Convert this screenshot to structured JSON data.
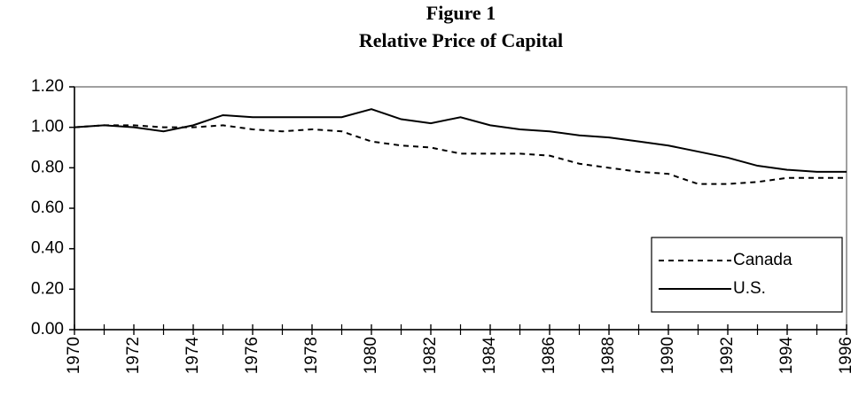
{
  "chart_data": {
    "type": "line",
    "title": "Figure 1",
    "subtitle": "Relative Price of Capital",
    "x": [
      1970,
      1971,
      1972,
      1973,
      1974,
      1975,
      1976,
      1977,
      1978,
      1979,
      1980,
      1981,
      1982,
      1983,
      1984,
      1985,
      1986,
      1987,
      1988,
      1989,
      1990,
      1991,
      1992,
      1993,
      1994,
      1995,
      1996
    ],
    "xlim": [
      1970,
      1996
    ],
    "xticks": [
      1970,
      1972,
      1974,
      1976,
      1978,
      1980,
      1982,
      1984,
      1986,
      1988,
      1990,
      1992,
      1994,
      1996
    ],
    "ylim": [
      0,
      1.2
    ],
    "yticks": [
      {
        "value": 0,
        "label": "0.00"
      },
      {
        "value": 0.2,
        "label": "0.20"
      },
      {
        "value": 0.4,
        "label": "0.40"
      },
      {
        "value": 0.6,
        "label": "0.60"
      },
      {
        "value": 0.8,
        "label": "0.80"
      },
      {
        "value": 1.0,
        "label": "1.00"
      },
      {
        "value": 1.2,
        "label": "1.20"
      }
    ],
    "grid": false,
    "legend": "lower right",
    "series": [
      {
        "name": "Canada",
        "color": "#000000",
        "style": "dashed",
        "values": [
          1.0,
          1.01,
          1.01,
          1.0,
          1.0,
          1.01,
          0.99,
          0.98,
          0.99,
          0.98,
          0.93,
          0.91,
          0.9,
          0.87,
          0.87,
          0.87,
          0.86,
          0.82,
          0.8,
          0.78,
          0.77,
          0.72,
          0.72,
          0.73,
          0.75,
          0.75,
          0.75
        ]
      },
      {
        "name": "U.S.",
        "color": "#000000",
        "style": "solid",
        "values": [
          1.0,
          1.01,
          1.0,
          0.98,
          1.01,
          1.06,
          1.05,
          1.05,
          1.05,
          1.05,
          1.09,
          1.04,
          1.02,
          1.05,
          1.01,
          0.99,
          0.98,
          0.96,
          0.95,
          0.93,
          0.91,
          0.88,
          0.85,
          0.81,
          0.79,
          0.78,
          0.78
        ]
      }
    ]
  }
}
